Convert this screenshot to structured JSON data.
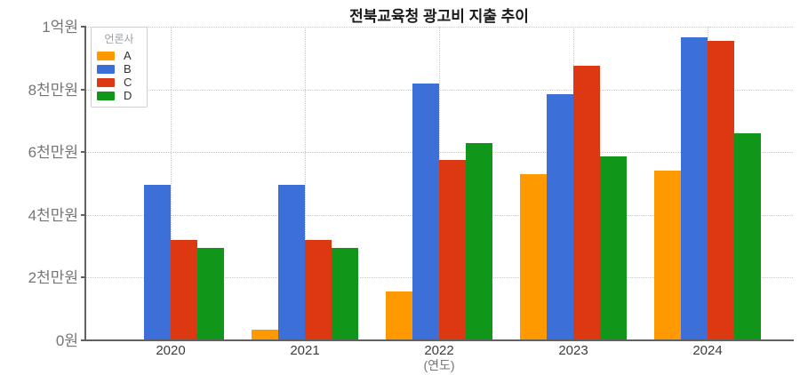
{
  "chart_data": {
    "type": "bar",
    "title": "전북교육청 광고비 지출 추이",
    "xlabel": "(연도)",
    "ylabel": "",
    "unit": "만원",
    "categories": [
      "2020",
      "2021",
      "2022",
      "2023",
      "2024"
    ],
    "series": [
      {
        "name": "A",
        "color": "#FF9900",
        "values": [
          0,
          350,
          1550,
          5300,
          5400
        ]
      },
      {
        "name": "B",
        "color": "#3D6FD8",
        "values": [
          4950,
          4950,
          8200,
          7850,
          9650
        ]
      },
      {
        "name": "C",
        "color": "#DC3912",
        "values": [
          3200,
          3200,
          5750,
          8750,
          9550
        ]
      },
      {
        "name": "D",
        "color": "#109618",
        "values": [
          2950,
          2950,
          6300,
          5850,
          6600
        ]
      }
    ],
    "ylim": [
      0,
      10000
    ],
    "yticks": [
      {
        "value": 0,
        "label": "0원"
      },
      {
        "value": 2000,
        "label": "2천만원"
      },
      {
        "value": 4000,
        "label": "4천만원"
      },
      {
        "value": 6000,
        "label": "6천만원"
      },
      {
        "value": 8000,
        "label": "8천만원"
      },
      {
        "value": 10000,
        "label": "1억원"
      }
    ],
    "grid": "dotted",
    "legend_title": "언론사",
    "legend_position": "top-left",
    "axis_color": "#616161",
    "grid_color": "#c9c9c9"
  }
}
